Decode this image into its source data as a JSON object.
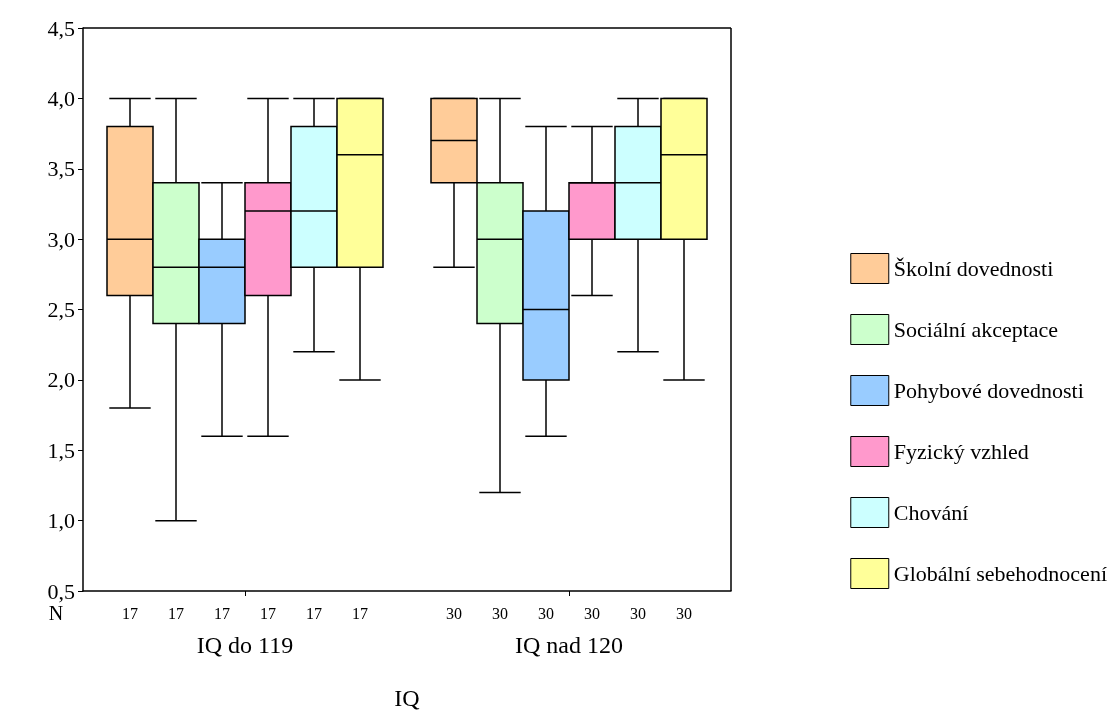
{
  "chart_data": {
    "type": "box",
    "xlabel": "IQ",
    "categories": [
      "IQ do 119",
      "IQ nad 120"
    ],
    "ylim": [
      0.5,
      4.5
    ],
    "yticks": [
      {
        "value": 0.5,
        "label": "0,5"
      },
      {
        "value": 1,
        "label": "1,0"
      },
      {
        "value": 1.5,
        "label": "1,5"
      },
      {
        "value": 2,
        "label": "2,0"
      },
      {
        "value": 2.5,
        "label": "2,5"
      },
      {
        "value": 3,
        "label": "3,0"
      },
      {
        "value": 3.5,
        "label": "3,5"
      },
      {
        "value": 4,
        "label": "4,0"
      },
      {
        "value": 4.5,
        "label": "4,5"
      }
    ],
    "grid": false,
    "legend": "right",
    "annotations": [
      "N",
      "17",
      "17",
      "17",
      "17",
      "17",
      "17",
      "30",
      "30",
      "30",
      "30",
      "30",
      "30"
    ],
    "series": [
      {
        "name": "Školní dovednosti",
        "color": "#ffcc99",
        "boxes": [
          {
            "low": 1.8,
            "q1": 2.6,
            "median": 3.0,
            "q3": 3.8,
            "high": 4.0
          },
          {
            "low": 2.8,
            "q1": 3.4,
            "median": 3.7,
            "q3": 4.0,
            "high": 4.0
          }
        ]
      },
      {
        "name": "Sociální akceptace",
        "color": "#ccffcc",
        "boxes": [
          {
            "low": 1.0,
            "q1": 2.4,
            "median": 2.8,
            "q3": 3.4,
            "high": 4.0
          },
          {
            "low": 1.2,
            "q1": 2.4,
            "median": 3.0,
            "q3": 3.4,
            "high": 4.0
          }
        ]
      },
      {
        "name": "Pohybové dovednosti",
        "color": "#99ccff",
        "boxes": [
          {
            "low": 1.6,
            "q1": 2.4,
            "median": 2.8,
            "q3": 3.0,
            "high": 3.4
          },
          {
            "low": 1.6,
            "q1": 2.0,
            "median": 2.5,
            "q3": 3.2,
            "high": 3.8
          }
        ]
      },
      {
        "name": "Fyzický vzhled",
        "color": "#ff99cc",
        "boxes": [
          {
            "low": 1.6,
            "q1": 2.6,
            "median": 3.2,
            "q3": 3.4,
            "high": 4.0
          },
          {
            "low": 2.6,
            "q1": 3.0,
            "median": 3.4,
            "q3": 3.4,
            "high": 3.8
          }
        ]
      },
      {
        "name": "Chování",
        "color": "#ccffff",
        "boxes": [
          {
            "low": 2.2,
            "q1": 2.8,
            "median": 3.2,
            "q3": 3.8,
            "high": 4.0
          },
          {
            "low": 2.2,
            "q1": 3.0,
            "median": 3.4,
            "q3": 3.8,
            "high": 4.0
          }
        ]
      },
      {
        "name": "Globální sebehodnocení",
        "color": "#ffff99",
        "boxes": [
          {
            "low": 2.0,
            "q1": 2.8,
            "median": 3.6,
            "q3": 4.0,
            "high": 4.0
          },
          {
            "low": 2.0,
            "q1": 3.0,
            "median": 3.6,
            "q3": 4.0,
            "high": 4.0
          }
        ]
      }
    ]
  }
}
